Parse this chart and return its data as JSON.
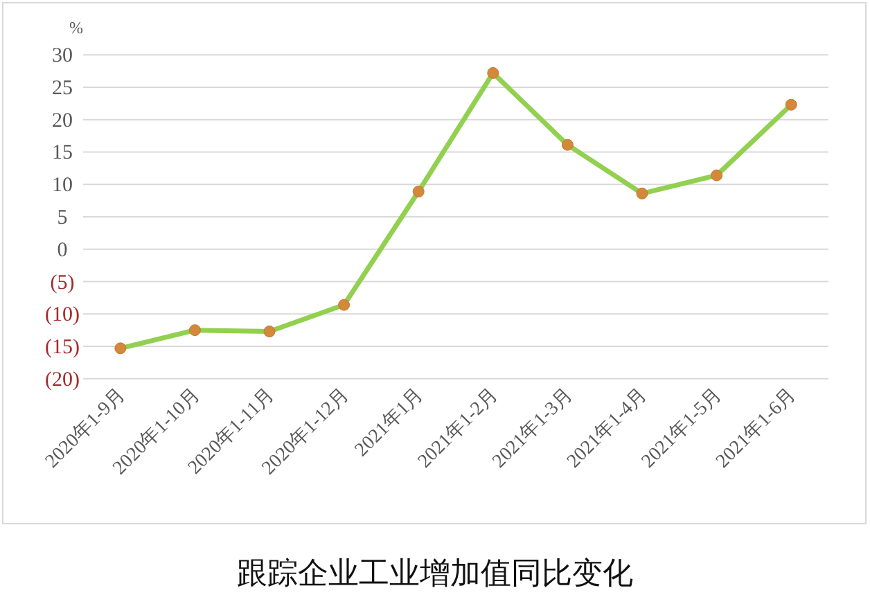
{
  "chart_data": {
    "type": "line",
    "title": "跟踪企业工业增加值同比变化",
    "ylabel": "%",
    "categories": [
      "2020年1-9月",
      "2020年1-10月",
      "2020年1-11月",
      "2020年1-12月",
      "2021年1月",
      "2021年1-2月",
      "2021年1-3月",
      "2021年1-4月",
      "2021年1-5月",
      "2021年1-6月"
    ],
    "series": [
      {
        "color": "#92d050",
        "values": [
          -15.3,
          -12.5,
          -12.7,
          -8.6,
          8.9,
          27.2,
          16.1,
          8.6,
          11.4,
          22.3
        ]
      }
    ],
    "ylim": [
      -20,
      30
    ],
    "yticks": [
      {
        "value": -20,
        "label": "(20)"
      },
      {
        "value": -15,
        "label": "(15)"
      },
      {
        "value": -10,
        "label": "(10)"
      },
      {
        "value": -5,
        "label": "(5)"
      },
      0,
      5,
      10,
      15,
      20,
      25,
      30
    ],
    "grid": "y",
    "marker": "circle"
  }
}
